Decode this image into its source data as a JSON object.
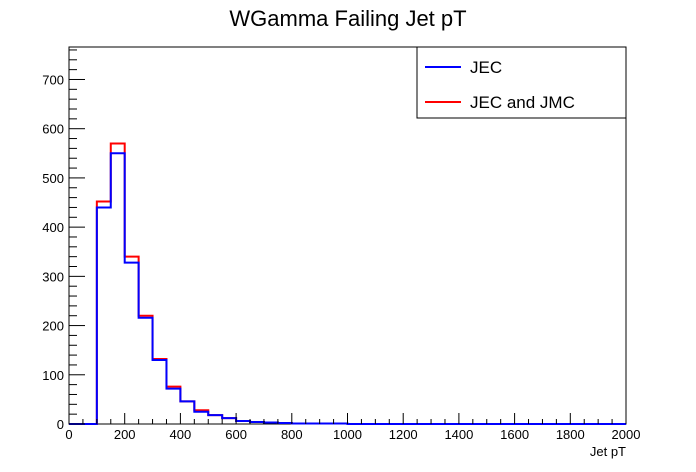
{
  "chart_data": {
    "type": "histogram",
    "title": "WGamma Failing Jet pT",
    "xlabel": "Jet pT",
    "ylabel": "",
    "xlim": [
      0,
      2000
    ],
    "ylim": [
      0,
      766
    ],
    "x_ticks": [
      0,
      200,
      400,
      600,
      800,
      1000,
      1200,
      1400,
      1600,
      1800,
      2000
    ],
    "y_ticks": [
      0,
      100,
      200,
      300,
      400,
      500,
      600,
      700
    ],
    "bin_width": 50,
    "bin_edges_start": 0,
    "legend_position": "top-right",
    "grid": false,
    "series": [
      {
        "name": "JEC",
        "color": "#0000ff",
        "values": [
          0,
          0,
          440,
          550,
          328,
          216,
          130,
          72,
          46,
          25,
          18,
          12,
          6,
          4,
          3,
          2,
          1,
          1,
          1,
          1,
          0,
          0,
          0,
          0,
          0,
          0,
          0,
          0,
          0,
          0,
          0,
          0,
          0,
          0,
          0,
          0,
          0,
          0,
          0,
          0
        ]
      },
      {
        "name": "JEC and JMC",
        "color": "#ff0000",
        "values": [
          0,
          0,
          452,
          570,
          340,
          220,
          132,
          76,
          46,
          28,
          18,
          12,
          6,
          4,
          3,
          2,
          1,
          1,
          1,
          1,
          0,
          0,
          0,
          0,
          0,
          0,
          0,
          0,
          0,
          0,
          0,
          0,
          0,
          0,
          0,
          0,
          0,
          0,
          0,
          0
        ]
      }
    ]
  }
}
